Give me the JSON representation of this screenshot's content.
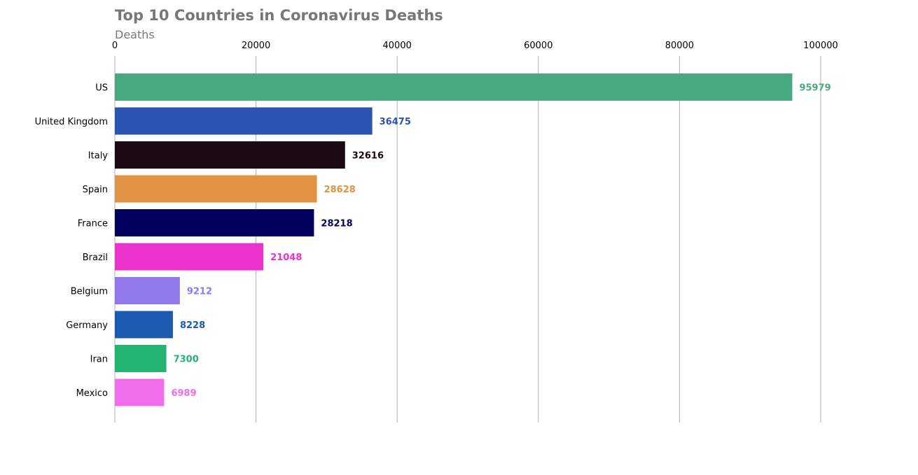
{
  "chart_data": {
    "type": "bar",
    "orientation": "horizontal",
    "title": "Top 10 Countries in Coronavirus Deaths",
    "xlabel": "Deaths",
    "ylabel": "",
    "xlim": [
      0,
      113000
    ],
    "xticks": [
      0,
      20000,
      40000,
      60000,
      80000,
      100000
    ],
    "xtick_labels": [
      "0",
      "20000",
      "40000",
      "60000",
      "80000",
      "100000"
    ],
    "grid": "vertical",
    "categories": [
      "US",
      "United Kingdom",
      "Italy",
      "Spain",
      "France",
      "Brazil",
      "Belgium",
      "Germany",
      "Iran",
      "Mexico"
    ],
    "values": [
      95979,
      36475,
      32616,
      28628,
      28218,
      21048,
      9212,
      8228,
      7300,
      6989
    ],
    "value_labels": [
      "95979",
      "36475",
      "32616",
      "28628",
      "28218",
      "21048",
      "9212",
      "8228",
      "7300",
      "6989"
    ],
    "colors": [
      "#48a97f",
      "#2c54b5",
      "#1a0812",
      "#e09342",
      "#02005a",
      "#ea33cb",
      "#9377ed",
      "#1a5ab1",
      "#23b373",
      "#f06eeb"
    ]
  }
}
